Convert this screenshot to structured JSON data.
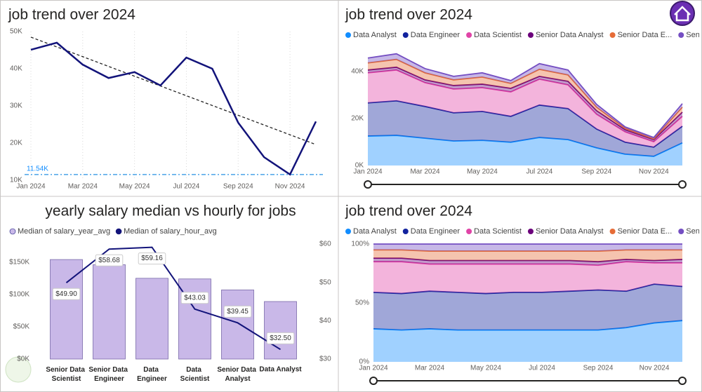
{
  "chart_data": [
    {
      "type": "line",
      "title": "job trend over 2024",
      "categories": [
        "Jan 2024",
        null,
        "Mar 2024",
        null,
        "May 2024",
        null,
        "Jul 2024",
        null,
        "Sep 2024",
        null,
        "Nov 2024",
        null
      ],
      "values": [
        45100,
        47000,
        41100,
        37500,
        39100,
        35500,
        43000,
        40000,
        25500,
        16200,
        11540,
        25800
      ],
      "color": "#12137a",
      "ylim": [
        10000,
        50000
      ],
      "yticks": [
        {
          "value": 10000,
          "label": "10K"
        },
        {
          "value": 20000,
          "label": "20K"
        },
        {
          "value": 30000,
          "label": "30K"
        },
        {
          "value": 40000,
          "label": "40K"
        },
        {
          "value": 50000,
          "label": "50K"
        }
      ],
      "trend_values": [
        48500,
        19600
      ],
      "reference": {
        "value": 11540,
        "label": "11.54K"
      },
      "grid": true
    },
    {
      "type": "stacked-area",
      "title": "job trend over 2024",
      "categories": [
        "Jan 2024",
        null,
        "Mar 2024",
        null,
        "May 2024",
        null,
        "Jul 2024",
        null,
        "Sep 2024",
        null,
        "Nov 2024",
        null
      ],
      "series": [
        {
          "name": "Data Analyst",
          "color": "#118dff",
          "values": [
            12500,
            12800,
            11600,
            10400,
            10700,
            9900,
            11900,
            11000,
            7500,
            4800,
            3900,
            9600
          ]
        },
        {
          "name": "Data Engineer",
          "color": "#12239e",
          "values": [
            14100,
            14700,
            13500,
            12000,
            12300,
            11000,
            13800,
            13200,
            8000,
            5100,
            3900,
            7100
          ]
        },
        {
          "name": "Data Scientist",
          "color": "#e044a7",
          "values": [
            12800,
            13100,
            10100,
            10100,
            10100,
            10400,
            11000,
            10100,
            6300,
            4400,
            2300,
            4200
          ]
        },
        {
          "name": "Senior Data Analyst",
          "color": "#6b007b",
          "values": [
            1200,
            1200,
            1200,
            1500,
            1500,
            1500,
            1200,
            1500,
            1500,
            900,
            900,
            1800
          ]
        },
        {
          "name": "Senior Data E...",
          "color": "#e66c37",
          "values": [
            3000,
            3300,
            3000,
            2400,
            3000,
            2100,
            3000,
            2700,
            1500,
            600,
            300,
            2100
          ]
        },
        {
          "name": "Senior Data ...",
          "color": "#744ec2",
          "values": [
            2100,
            2400,
            1800,
            1500,
            1800,
            1200,
            2400,
            2100,
            1200,
            600,
            600,
            1500
          ]
        }
      ],
      "ylim": [
        0,
        48000
      ],
      "yticks": [
        {
          "value": 0,
          "label": "0K"
        },
        {
          "value": 20000,
          "label": "20K"
        },
        {
          "value": 40000,
          "label": "40K"
        }
      ]
    },
    {
      "type": "combo",
      "title": "yearly salary median vs hourly for jobs",
      "categories": [
        "Senior Data Scientist",
        "Senior Data Engineer",
        "Data Engineer",
        "Data Scientist",
        "Senior Data Analyst",
        "Data Analyst"
      ],
      "series": [
        {
          "name": "Median of salary_year_avg",
          "color": "#c9b8e8",
          "values": [
            154000,
            146000,
            125000,
            124000,
            107000,
            89000
          ]
        },
        {
          "name": "Median of salary_hour_avg",
          "color": "#12137a",
          "axis": "y2",
          "values": [
            49.9,
            58.68,
            59.16,
            43.03,
            39.45,
            32.5
          ],
          "value_labels": [
            "$49.90",
            "$58.68",
            "$59.16",
            "$43.03",
            "$39.45",
            "$32.50"
          ]
        }
      ],
      "ylim": [
        0,
        178000
      ],
      "yticks": [
        {
          "value": 0,
          "label": "$0K"
        },
        {
          "value": 50000,
          "label": "$50K"
        },
        {
          "value": 100000,
          "label": "$100K"
        },
        {
          "value": 150000,
          "label": "$150K"
        }
      ],
      "y2lim": [
        30,
        60
      ],
      "y2ticks": [
        {
          "value": 30,
          "label": "$30"
        },
        {
          "value": 40,
          "label": "$40"
        },
        {
          "value": 50,
          "label": "$50"
        },
        {
          "value": 60,
          "label": "$60"
        }
      ]
    },
    {
      "type": "percent-area",
      "title": "job trend over 2024",
      "categories": [
        "Jan 2024",
        null,
        "Mar 2024",
        null,
        "May 2024",
        null,
        "Jul 2024",
        null,
        "Sep 2024",
        null,
        "Nov 2024",
        null
      ],
      "series": [
        {
          "name": "Data Analyst",
          "color": "#118dff",
          "values": [
            28,
            27,
            28,
            27,
            27,
            27,
            27,
            27,
            27,
            29,
            33,
            35
          ]
        },
        {
          "name": "Data Engineer",
          "color": "#12239e",
          "values": [
            31,
            31,
            32,
            32,
            31,
            32,
            32,
            33,
            34,
            31,
            33,
            29
          ]
        },
        {
          "name": "Data Scientist",
          "color": "#e044a7",
          "values": [
            26,
            27,
            23,
            24,
            25,
            24,
            24,
            23,
            21,
            25,
            18,
            20
          ]
        },
        {
          "name": "Senior Data Analyst",
          "color": "#6b007b",
          "values": [
            3,
            3,
            3,
            3,
            3,
            3,
            3,
            3,
            3,
            2,
            2,
            3
          ]
        },
        {
          "name": "Senior Data E...",
          "color": "#e66c37",
          "values": [
            7,
            7,
            8,
            8,
            8,
            8,
            8,
            8,
            9,
            8,
            9,
            8
          ]
        },
        {
          "name": "Senior Data ...",
          "color": "#744ec2",
          "values": [
            5,
            5,
            6,
            6,
            6,
            6,
            6,
            6,
            6,
            5,
            5,
            5
          ]
        }
      ],
      "ylim": [
        0,
        100
      ],
      "yticks": [
        {
          "value": 0,
          "label": "0%"
        },
        {
          "value": 50,
          "label": "50%"
        },
        {
          "value": 100,
          "label": "100%"
        }
      ]
    }
  ]
}
